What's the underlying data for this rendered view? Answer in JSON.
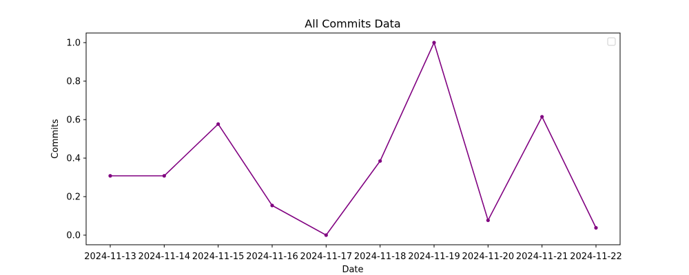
{
  "chart_data": {
    "type": "line",
    "title": "All Commits Data",
    "xlabel": "Date",
    "ylabel": "Commits",
    "x": [
      "2024-11-13",
      "2024-11-14",
      "2024-11-15",
      "2024-11-16",
      "2024-11-17",
      "2024-11-18",
      "2024-11-19",
      "2024-11-20",
      "2024-11-21",
      "2024-11-22"
    ],
    "series": [
      {
        "values": [
          0.308,
          0.308,
          0.577,
          0.154,
          0.0,
          0.385,
          1.0,
          0.077,
          0.615,
          0.038
        ],
        "color": "#800080"
      }
    ],
    "yticks": [
      "0.0",
      "0.2",
      "0.4",
      "0.6",
      "0.8",
      "1.0"
    ],
    "ylim": [
      -0.05,
      1.05
    ],
    "legend": "top-right (empty)",
    "grid": false
  }
}
